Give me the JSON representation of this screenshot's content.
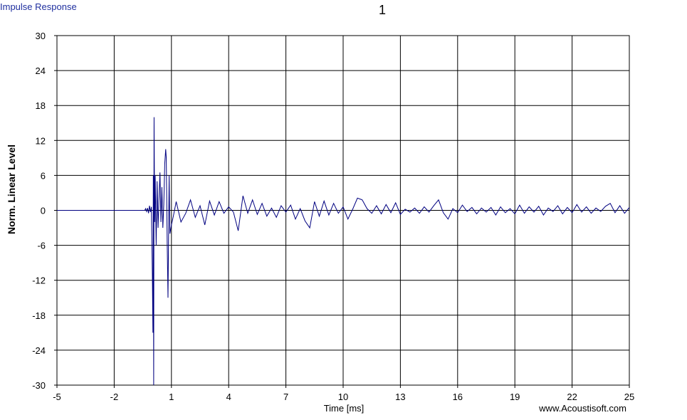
{
  "chart_data": {
    "type": "line",
    "corner_label": "Impulse Response",
    "title": "1",
    "xlabel": "Time [ms]",
    "ylabel": "Norm. Linear Level",
    "credit": "www.Acoustisoft.com",
    "xlim": [
      -5,
      25
    ],
    "xticks": [
      -5,
      -2,
      1,
      4,
      7,
      10,
      13,
      16,
      19,
      22,
      25
    ],
    "ylim": [
      -30,
      30
    ],
    "yticks": [
      -30,
      -24,
      -18,
      -12,
      -6,
      0,
      6,
      12,
      18,
      24,
      30
    ],
    "grid": true,
    "series": [
      {
        "color": "#000080",
        "x": [
          -5,
          -0.4,
          -0.35,
          -0.3,
          -0.25,
          -0.2,
          -0.15,
          -0.1,
          -0.05,
          0.0,
          0.03,
          0.05,
          0.07,
          0.09,
          0.12,
          0.15,
          0.2,
          0.25,
          0.3,
          0.35,
          0.4,
          0.45,
          0.5,
          0.55,
          0.6,
          0.65,
          0.7,
          0.73,
          0.78,
          0.82,
          0.88,
          0.92,
          1.0,
          1.1,
          1.25,
          1.5,
          1.75,
          2.0,
          2.25,
          2.5,
          2.75,
          3.0,
          3.25,
          3.5,
          3.75,
          4.0,
          4.25,
          4.5,
          4.75,
          5.0,
          5.25,
          5.5,
          5.75,
          6.0,
          6.25,
          6.5,
          6.75,
          7.0,
          7.25,
          7.5,
          7.75,
          8.0,
          8.25,
          8.5,
          8.75,
          9.0,
          9.25,
          9.5,
          9.75,
          10.0,
          10.25,
          10.5,
          10.75,
          11.0,
          11.25,
          11.5,
          11.75,
          12.0,
          12.25,
          12.5,
          12.75,
          13.0,
          13.25,
          13.5,
          13.75,
          14.0,
          14.25,
          14.5,
          14.75,
          15.0,
          15.25,
          15.5,
          15.75,
          16.0,
          16.25,
          16.5,
          16.75,
          17.0,
          17.25,
          17.5,
          17.75,
          18.0,
          18.25,
          18.5,
          18.75,
          19.0,
          19.25,
          19.5,
          19.75,
          20.0,
          20.25,
          20.5,
          20.75,
          21.0,
          21.25,
          21.5,
          21.75,
          22.0,
          22.25,
          22.5,
          22.75,
          23.0,
          23.25,
          23.5,
          23.75,
          24.0,
          24.25,
          24.5,
          24.75,
          25.0
        ],
        "values": [
          0,
          0,
          0.3,
          -0.2,
          0.4,
          -0.5,
          0.8,
          -0.3,
          0.6,
          -11,
          -21,
          6,
          -30,
          16,
          -2,
          6,
          -6,
          5,
          -3,
          2,
          6.5,
          -2,
          4,
          -3,
          1,
          8,
          10.5,
          9,
          -6,
          -15,
          6,
          -4,
          -2.5,
          -1,
          1.5,
          -2,
          -0.5,
          1.8,
          -1.2,
          0.8,
          -2.5,
          1.6,
          -0.8,
          1.5,
          -0.5,
          0.6,
          -0.3,
          -3.5,
          2.5,
          -0.5,
          1.8,
          -0.7,
          1.2,
          -1,
          0.4,
          -1.2,
          0.8,
          -0.3,
          0.9,
          -1.5,
          0.3,
          -1.8,
          -3,
          1.5,
          -1,
          1.6,
          -0.8,
          1.2,
          -0.5,
          0.6,
          -1.5,
          0.2,
          2.1,
          1.8,
          0.3,
          -0.5,
          0.8,
          -0.6,
          1,
          -0.4,
          1.3,
          -0.7,
          0.2,
          -0.3,
          0.4,
          -0.5,
          0.6,
          -0.3,
          0.8,
          1.8,
          -0.4,
          -1.5,
          0.3,
          -0.4,
          0.9,
          -0.2,
          0.5,
          -0.6,
          0.4,
          -0.3,
          0.5,
          -0.8,
          0.6,
          -0.4,
          0.3,
          -0.6,
          0.9,
          -0.5,
          0.6,
          -0.3,
          0.7,
          -0.8,
          0.4,
          -0.2,
          0.8,
          -0.6,
          0.5,
          -0.4,
          1,
          -0.3,
          0.6,
          -0.5,
          0.4,
          -0.2,
          0.7,
          1.2,
          -0.4,
          0.8,
          -0.5,
          0.5
        ]
      }
    ]
  }
}
